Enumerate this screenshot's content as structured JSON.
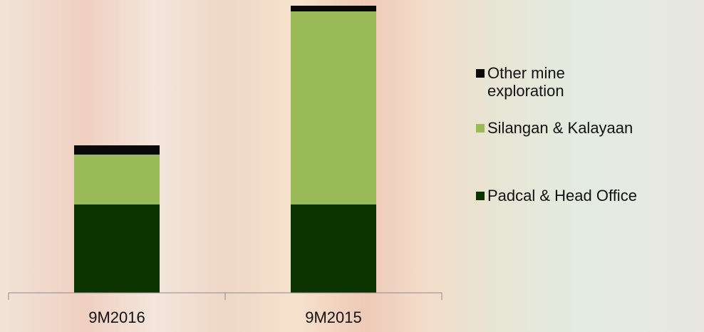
{
  "chart_data": {
    "type": "stacked_bar",
    "categories": [
      "9M2016",
      "9M2015"
    ],
    "series": [
      {
        "name": "Padcal & Head Office",
        "color": "#0b3300",
        "values": [
          31,
          31
        ]
      },
      {
        "name": "Silangan & Kalayaan",
        "color": "#9bbb59",
        "values": [
          17.5,
          67.75
        ]
      },
      {
        "name": "Other mine exploration",
        "color": "#0a0a0a",
        "values": [
          3.25,
          2
        ]
      }
    ],
    "ylim": [
      0,
      101
    ]
  }
}
